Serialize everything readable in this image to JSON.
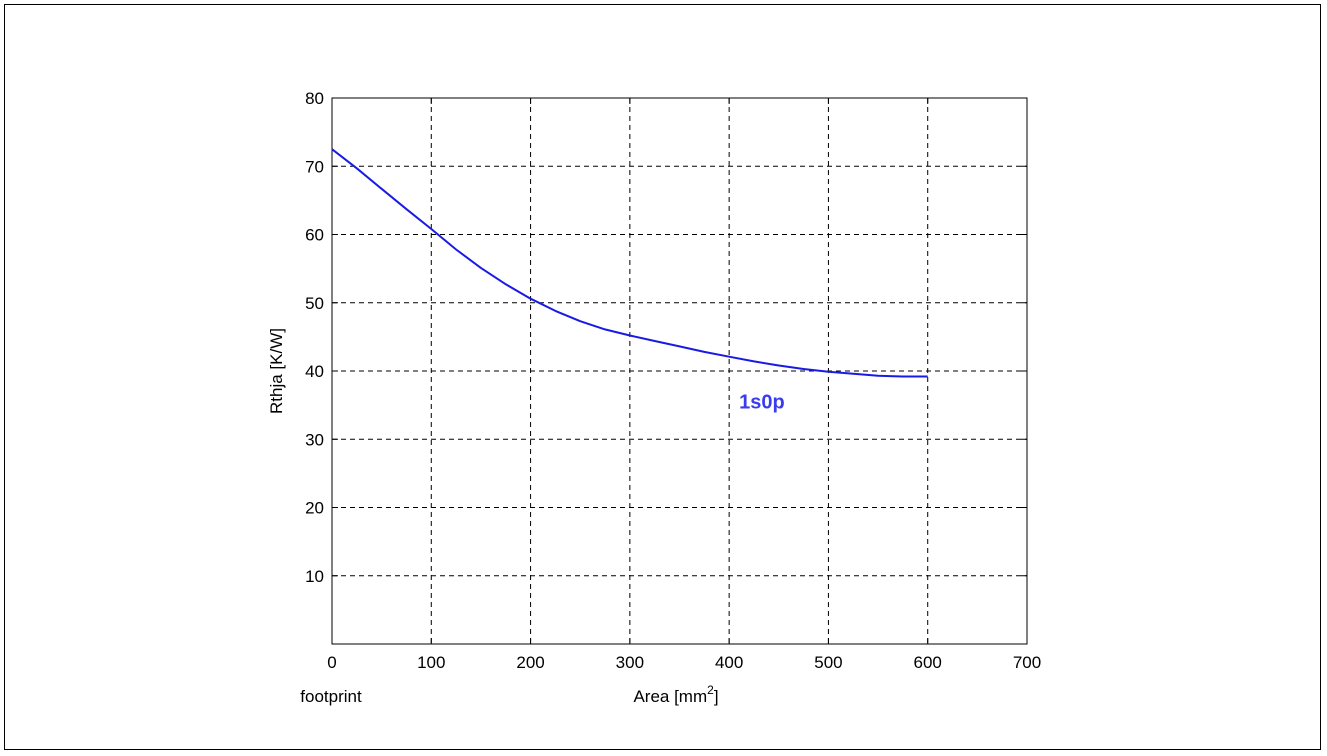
{
  "chart_data": {
    "type": "line",
    "title": "",
    "xlabel": "Area [mm",
    "xlabel_superscript": "2",
    "xlabel_suffix": "]",
    "xlabel_note": "footprint",
    "ylabel": "Rthja [K/W]",
    "xlim": [
      0,
      700
    ],
    "ylim": [
      0,
      80
    ],
    "xticks": [
      0,
      100,
      200,
      300,
      400,
      500,
      600,
      700
    ],
    "yticks": [
      10,
      20,
      30,
      40,
      50,
      60,
      70,
      80
    ],
    "grid": true,
    "series": [
      {
        "name": "1s0p",
        "color": "#1a1ae6",
        "x": [
          0,
          25,
          50,
          75,
          100,
          125,
          150,
          175,
          200,
          225,
          250,
          275,
          300,
          325,
          350,
          375,
          400,
          425,
          450,
          475,
          500,
          525,
          550,
          575,
          600
        ],
        "y": [
          72.5,
          69.7,
          66.7,
          63.7,
          60.8,
          57.8,
          55.1,
          52.7,
          50.6,
          48.8,
          47.3,
          46.1,
          45.2,
          44.4,
          43.6,
          42.8,
          42.1,
          41.4,
          40.8,
          40.3,
          39.9,
          39.6,
          39.3,
          39.2,
          39.2
        ]
      }
    ],
    "annotations": [
      {
        "text": "1s0p",
        "x": 433,
        "y": 34.5,
        "color": "#3b3bf0"
      }
    ]
  }
}
